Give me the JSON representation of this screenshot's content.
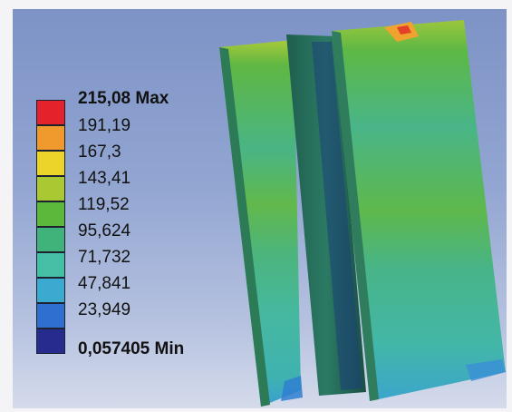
{
  "legend": {
    "entries": [
      {
        "label": "215,08 Max",
        "bold": true
      },
      {
        "label": "191,19",
        "bold": false
      },
      {
        "label": "167,3",
        "bold": false
      },
      {
        "label": "143,41",
        "bold": false
      },
      {
        "label": "119,52",
        "bold": false
      },
      {
        "label": "95,624",
        "bold": false
      },
      {
        "label": "71,732",
        "bold": false
      },
      {
        "label": "47,841",
        "bold": false
      },
      {
        "label": "23,949",
        "bold": false
      },
      {
        "label": "0,057405 Min",
        "bold": true
      }
    ],
    "colors": [
      "#e3222b",
      "#f09a2e",
      "#ecd42a",
      "#a9c832",
      "#5cb83a",
      "#3fb37a",
      "#45bfa6",
      "#3aaad0",
      "#2f6fd0",
      "#272b8e"
    ]
  }
}
